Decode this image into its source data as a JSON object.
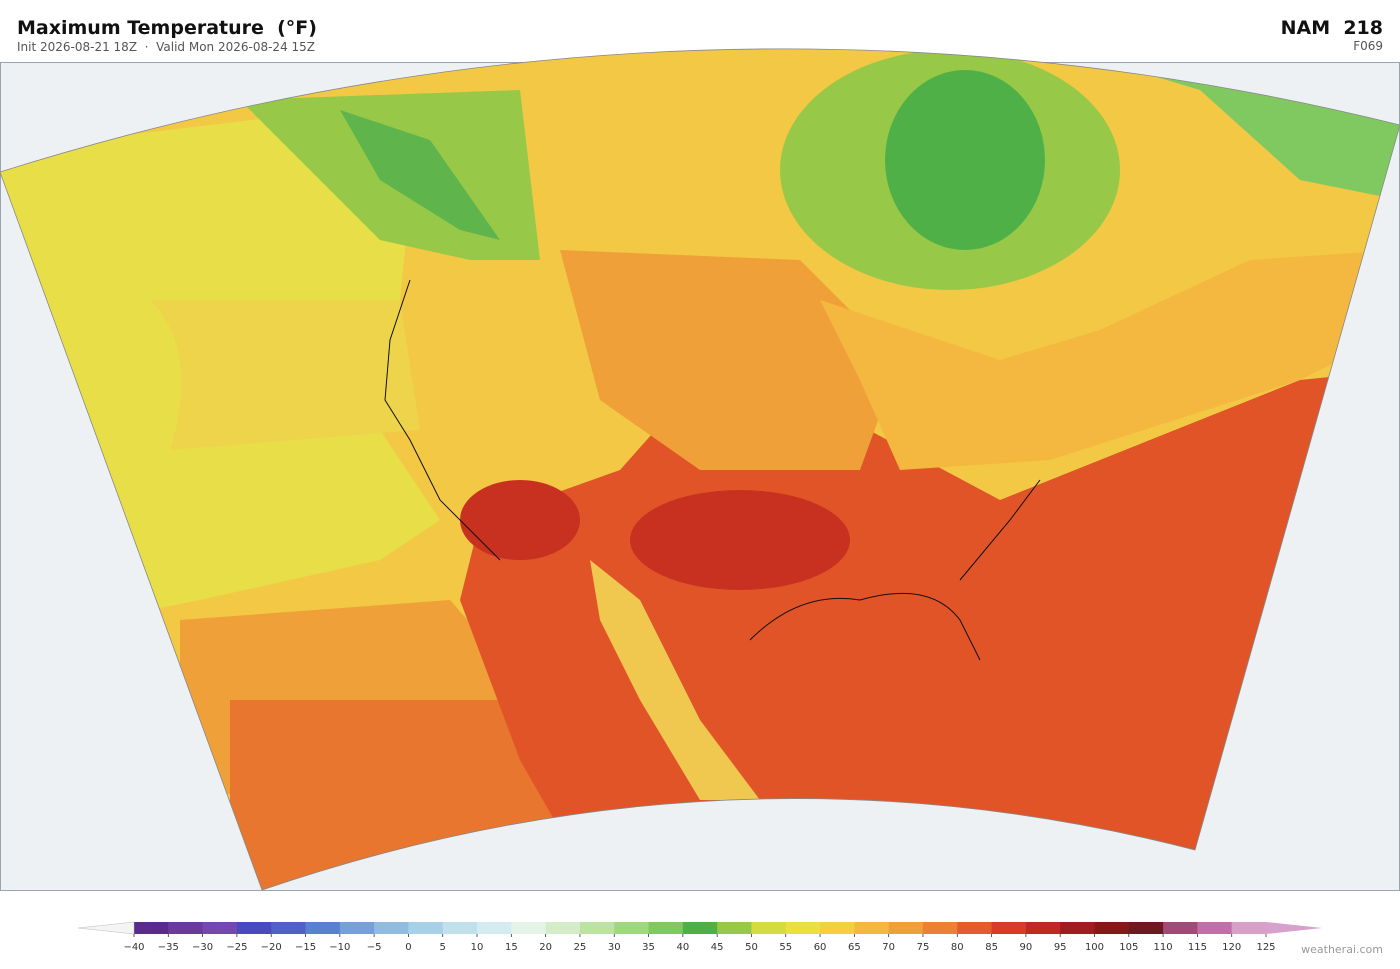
{
  "header": {
    "title": "Maximum Temperature  (°F)",
    "subtitle": "Init 2026-08-21 18Z  ·  Valid Mon 2026-08-24 15Z",
    "model": "NAM  218",
    "forecast_hour": "F069"
  },
  "colorbar": {
    "clim": [
      -40,
      125
    ],
    "ticks": [
      {
        "value": -40,
        "label": "−40"
      },
      {
        "value": -35,
        "label": "−35"
      },
      {
        "value": -30,
        "label": "−30"
      },
      {
        "value": -25,
        "label": "−25"
      },
      {
        "value": -20,
        "label": "−20"
      },
      {
        "value": -15,
        "label": "−15"
      },
      {
        "value": -10,
        "label": "−10"
      },
      {
        "value": -5,
        "label": "−5"
      },
      0,
      5,
      10,
      15,
      20,
      25,
      30,
      35,
      40,
      45,
      50,
      55,
      60,
      65,
      70,
      75,
      80,
      85,
      90,
      95,
      100,
      105,
      110,
      115,
      120,
      125
    ],
    "colors": [
      "#5a2a8c",
      "#6a3a9c",
      "#7448b0",
      "#4a4ac0",
      "#5060c8",
      "#5a80d0",
      "#78a0d8",
      "#90bce0",
      "#a8d0e8",
      "#c0e0ec",
      "#d4ecf0",
      "#e4f4e8",
      "#d4ecc8",
      "#bce4a0",
      "#a0d880",
      "#80c860",
      "#50b048",
      "#98c848",
      "#d4dc40",
      "#ece040",
      "#f4d040",
      "#f4b840",
      "#f0a038",
      "#ec8034",
      "#e45c2c",
      "#d83c28",
      "#c02824",
      "#a01c20",
      "#881818",
      "#701820",
      "#a04a78",
      "#c070a8",
      "#d8a0c8"
    ],
    "under_color": "#f4f4f4",
    "over_color": "#d8a0cc"
  },
  "watermark": "weatherai.com"
}
